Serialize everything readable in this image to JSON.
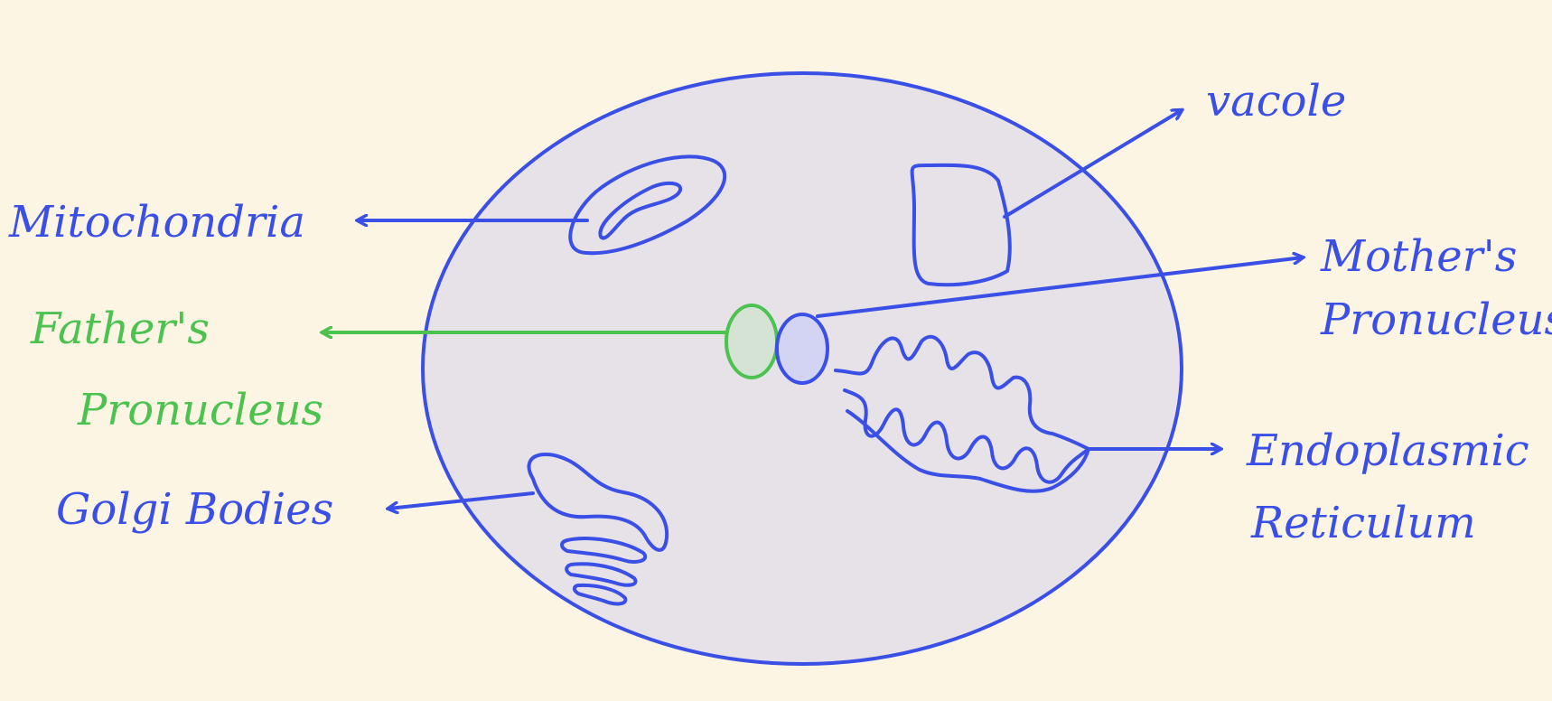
{
  "colors": {
    "background": "#fcf5e3",
    "cell_fill": "#e6e2e8",
    "ink_blue": "#3a4fe6",
    "ink_green": "#4cc24f",
    "father_fill": "#d5e3d4",
    "mother_fill": "#d3d4f3"
  },
  "labels": {
    "vacuole": "vacole",
    "mitochondria": "Mitochondria",
    "mothers_pronucleus_line1": "Mother's",
    "mothers_pronucleus_line2": "Pronucleus",
    "fathers_pronucleus_line1": "Father's",
    "fathers_pronucleus_line2": "Pronucleus",
    "endoplasmic_reticulum_line1": "Endoplasmic",
    "endoplasmic_reticulum_line2": "Reticulum",
    "golgi_bodies": "Golgi Bodies"
  }
}
